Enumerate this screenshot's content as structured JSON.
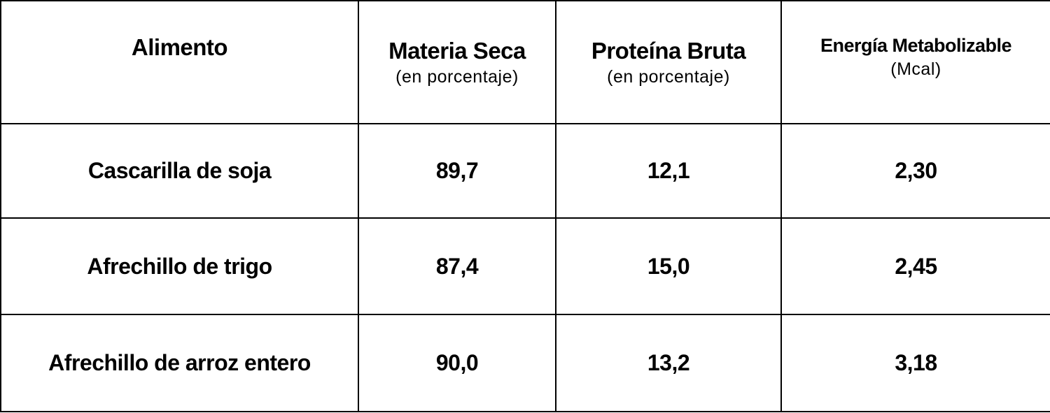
{
  "table": {
    "header": [
      {
        "title": "Alimento"
      },
      {
        "title": "Materia Seca",
        "subtitle": "(en porcentaje)"
      },
      {
        "title": "Proteína Bruta",
        "subtitle": "(en porcentaje)"
      },
      {
        "title": "Energía Metabolizable",
        "subtitle": "(Mcal)"
      }
    ],
    "rows": [
      [
        "Cascarilla de soja",
        "89,7",
        "12,1",
        "2,30"
      ],
      [
        "Afrechillo de trigo",
        "87,4",
        "15,0",
        "2,45"
      ],
      [
        "Afrechillo de arroz entero",
        "90,0",
        "13,2",
        "3,18"
      ]
    ]
  }
}
